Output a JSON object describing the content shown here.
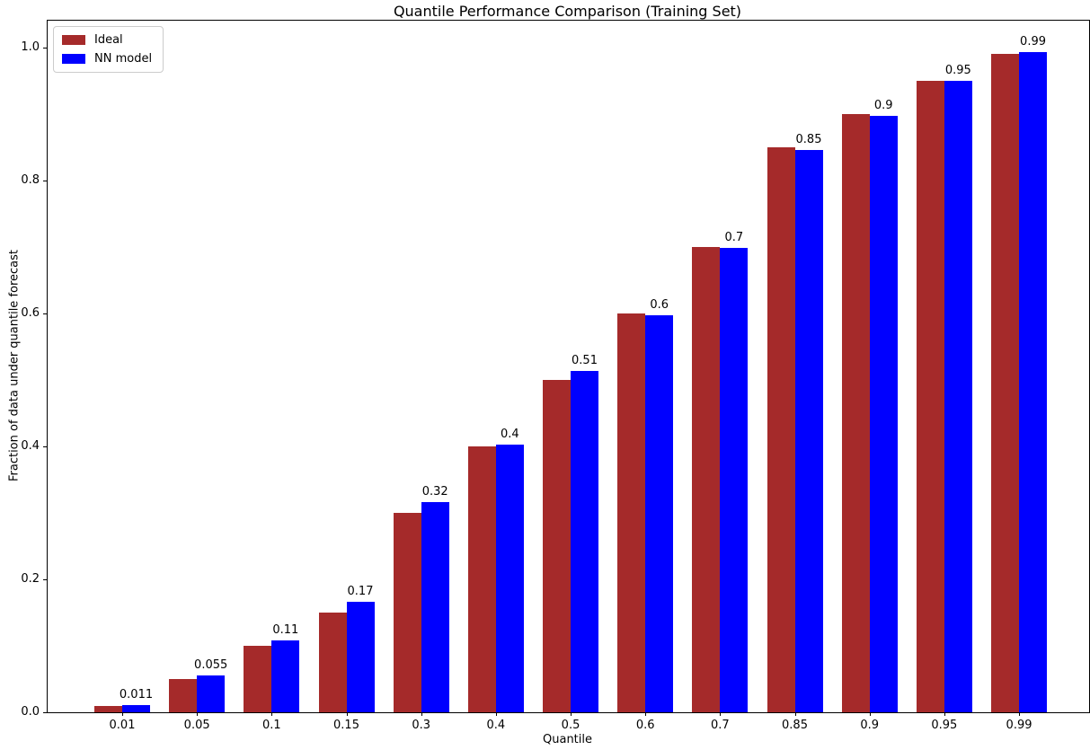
{
  "chart_data": {
    "type": "bar",
    "title": "Quantile Performance Comparison (Training Set)",
    "xlabel": "Quantile",
    "ylabel": "Fraction of data under quantile forecast",
    "categories": [
      "0.01",
      "0.05",
      "0.1",
      "0.15",
      "0.3",
      "0.4",
      "0.5",
      "0.6",
      "0.7",
      "0.85",
      "0.9",
      "0.95",
      "0.99"
    ],
    "series": [
      {
        "name": "Ideal",
        "color": "#A52A2A",
        "values": [
          0.01,
          0.05,
          0.1,
          0.15,
          0.3,
          0.4,
          0.5,
          0.6,
          0.7,
          0.85,
          0.9,
          0.95,
          0.99
        ]
      },
      {
        "name": "NN model",
        "color": "#0000FF",
        "values": [
          0.011,
          0.055,
          0.108,
          0.166,
          0.316,
          0.403,
          0.513,
          0.597,
          0.698,
          0.846,
          0.897,
          0.95,
          0.993
        ],
        "bar_labels": [
          "0.011",
          "0.055",
          "0.11",
          "0.17",
          "0.32",
          "0.4",
          "0.51",
          "0.6",
          "0.7",
          "0.85",
          "0.9",
          "0.95",
          "0.99"
        ]
      }
    ],
    "yticks": [
      "0.0",
      "0.2",
      "0.4",
      "0.6",
      "0.8",
      "1.0"
    ],
    "ylim": [
      0,
      1.04
    ],
    "legend_position": "upper left",
    "grid": false
  }
}
